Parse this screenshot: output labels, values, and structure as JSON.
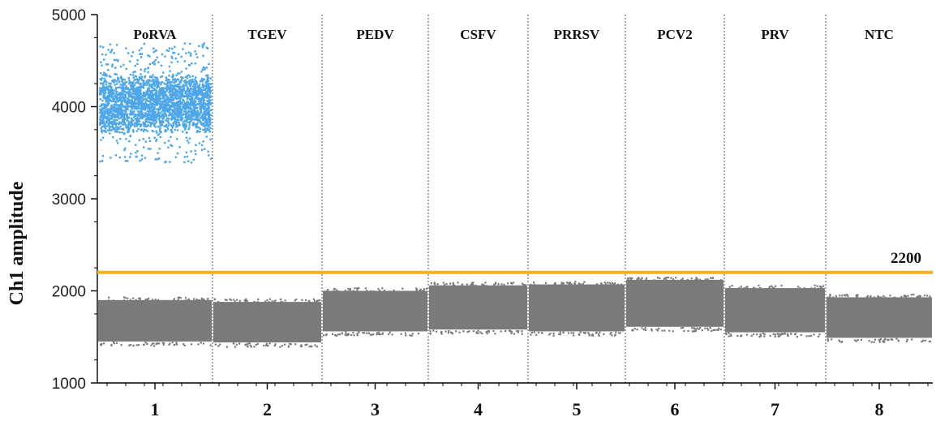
{
  "chart_data": {
    "type": "scatter",
    "ylabel": "Ch1 amplitude",
    "xlabel": "",
    "ylim": [
      1000,
      5000
    ],
    "yticks": [
      1000,
      2000,
      3000,
      4000,
      5000
    ],
    "grid": false,
    "threshold": {
      "value": 2200,
      "label": "2200",
      "color": "#F5B21B"
    },
    "colors": {
      "positive": "#4DA6E8",
      "negative": "#7A7A7A"
    },
    "wells": [
      {
        "index": "1",
        "name": "PoRVA",
        "negative_band": [
          1450,
          1900
        ],
        "positive_band": [
          3700,
          4400
        ],
        "positive_center": 4020
      },
      {
        "index": "2",
        "name": "TGEV",
        "negative_band": [
          1440,
          1880
        ],
        "positive_band": null
      },
      {
        "index": "3",
        "name": "PEDV",
        "negative_band": [
          1560,
          2000
        ],
        "positive_band": null
      },
      {
        "index": "4",
        "name": "CSFV",
        "negative_band": [
          1580,
          2060
        ],
        "positive_band": null
      },
      {
        "index": "5",
        "name": "PRRSV",
        "negative_band": [
          1560,
          2070
        ],
        "positive_band": null
      },
      {
        "index": "6",
        "name": "PCV2",
        "negative_band": [
          1610,
          2120
        ],
        "positive_band": null
      },
      {
        "index": "7",
        "name": "PRV",
        "negative_band": [
          1550,
          2030
        ],
        "positive_band": null
      },
      {
        "index": "8",
        "name": "NTC",
        "negative_band": [
          1490,
          1930
        ],
        "positive_band": null
      }
    ]
  }
}
